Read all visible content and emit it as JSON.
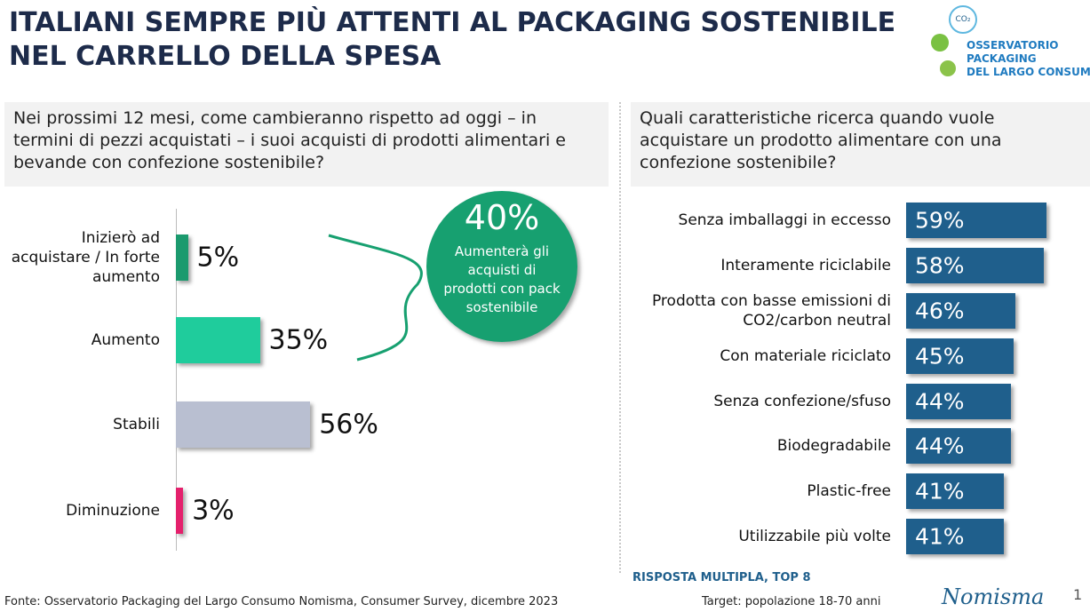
{
  "header": {
    "title_lines": [
      "ITALIANI SEMPRE PIÙ ATTENTI AL PACKAGING SOSTENIBILE",
      "NEL CARRELLO DELLA SPESA"
    ],
    "logo_lines": [
      "OSSERVATORIO",
      "PACKAGING",
      "DEL LARGO CONSUMO"
    ],
    "logo_icon": "CO₂"
  },
  "chart_data": [
    {
      "type": "bar",
      "orientation": "horizontal",
      "title": "Nei prossimi 12 mesi, come cambieranno rispetto ad oggi – in termini di pezzi acquistati – i suoi acquisti di prodotti alimentari e bevande con confezione sostenibile?",
      "categories": [
        "Inizierò ad acquistare / In forte aumento",
        "Aumento",
        "Stabili",
        "Diminuzione"
      ],
      "values": [
        5,
        35,
        56,
        3
      ],
      "value_labels": [
        "5%",
        "35%",
        "56%",
        "3%"
      ],
      "colors": [
        "#1b9a6e",
        "#1fcc9c",
        "#b9bfd1",
        "#e4206c"
      ],
      "xlim": [
        0,
        100
      ],
      "annotation": {
        "value_label": "40%",
        "text": "Aumenterà gli acquisti di prodotti con pack sostenibile",
        "color": "#17a070"
      }
    },
    {
      "type": "bar",
      "orientation": "horizontal",
      "title": "Quali caratteristiche ricerca quando vuole acquistare un prodotto alimentare con una confezione sostenibile?",
      "categories": [
        "Senza imballaggi in eccesso",
        "Interamente riciclabile",
        "Prodotta con basse emissioni di CO2/carbon neutral",
        "Con materiale riciclato",
        "Senza confezione/sfuso",
        "Biodegradabile",
        "Plastic-free",
        "Utilizzabile più volte"
      ],
      "values": [
        59,
        58,
        46,
        45,
        44,
        44,
        41,
        41
      ],
      "value_labels": [
        "59%",
        "58%",
        "46%",
        "45%",
        "44%",
        "44%",
        "41%",
        "41%"
      ],
      "color": "#1f5f8c",
      "xlim": [
        0,
        100
      ],
      "note": "RISPOSTA MULTIPLA, TOP 8"
    }
  ],
  "footer": {
    "source": "Fonte: Osservatorio Packaging del Largo Consumo Nomisma, Consumer Survey, dicembre 2023",
    "target": "Target: popolazione 18-70 anni",
    "brand": "Nomisma",
    "page": "1"
  }
}
